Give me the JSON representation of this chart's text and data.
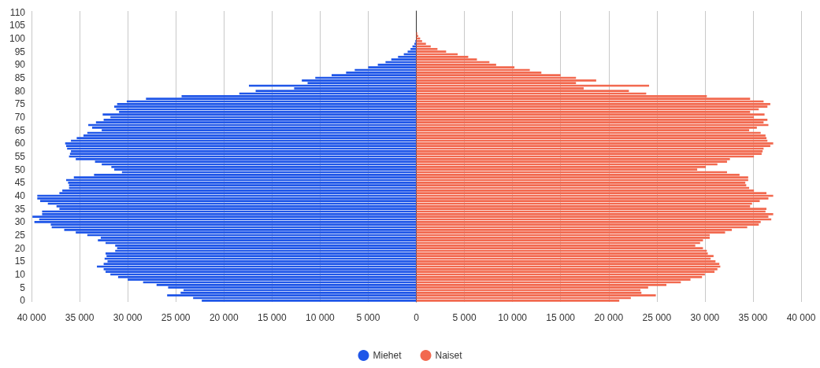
{
  "chart_data": {
    "type": "bar",
    "orientation": "horizontal",
    "categories": [
      "110",
      null,
      null,
      null,
      null,
      "105",
      null,
      null,
      null,
      null,
      "100",
      null,
      null,
      null,
      null,
      "95",
      null,
      null,
      null,
      null,
      "90",
      null,
      null,
      null,
      null,
      "85",
      null,
      null,
      null,
      null,
      "80",
      null,
      null,
      null,
      null,
      "75",
      null,
      null,
      null,
      null,
      "70",
      null,
      null,
      null,
      null,
      "65",
      null,
      null,
      null,
      null,
      "60",
      null,
      null,
      null,
      null,
      "55",
      null,
      null,
      null,
      null,
      "50",
      null,
      null,
      null,
      null,
      "45",
      null,
      null,
      null,
      null,
      "40",
      null,
      null,
      null,
      null,
      "35",
      null,
      null,
      null,
      null,
      "30",
      null,
      null,
      null,
      null,
      "25",
      null,
      null,
      null,
      null,
      "20",
      null,
      null,
      null,
      null,
      "15",
      null,
      null,
      null,
      null,
      "10",
      null,
      null,
      null,
      null,
      "5",
      null,
      null,
      null,
      null,
      "0"
    ],
    "series": [
      {
        "name": "Miehet",
        "color": "#1f56e8",
        "values": [
          0,
          0,
          0,
          0,
          0,
          0,
          0,
          0,
          0,
          0,
          0,
          -100,
          -200,
          -400,
          -600,
          -900,
          -1300,
          -1900,
          -2600,
          -3200,
          -4000,
          -5000,
          -6400,
          -7300,
          -8800,
          -10500,
          -11900,
          -11300,
          -17400,
          -12700,
          -16700,
          -18400,
          -24400,
          -28100,
          -30100,
          -31100,
          -31400,
          -31200,
          -30900,
          -32600,
          -31800,
          -32500,
          -33300,
          -34100,
          -33700,
          -32700,
          -34200,
          -34600,
          -35300,
          -35900,
          -36500,
          -36400,
          -36300,
          -35900,
          -36000,
          -36100,
          -35400,
          -33400,
          -32700,
          -31700,
          -31400,
          -30600,
          -33500,
          -35600,
          -36400,
          -36200,
          -36100,
          -36100,
          -36800,
          -37100,
          -39400,
          -39400,
          -39100,
          -38300,
          -37400,
          -37100,
          -38900,
          -38900,
          -39900,
          -39200,
          -39700,
          -38000,
          -37900,
          -36600,
          -35400,
          -34200,
          -32800,
          -33100,
          -32300,
          -31300,
          -31100,
          -31300,
          -32300,
          -32200,
          -32400,
          -32100,
          -32500,
          -33200,
          -32500,
          -32300,
          -31800,
          -31000,
          -30000,
          -28400,
          -27000,
          -25800,
          -24200,
          -24500,
          -25900,
          -23200,
          -22300
        ]
      },
      {
        "name": "Naiset",
        "color": "#f2694f",
        "values": [
          0,
          0,
          0,
          0,
          0,
          0,
          0,
          0,
          100,
          200,
          400,
          600,
          1000,
          1500,
          2200,
          3100,
          4300,
          5400,
          6300,
          7600,
          8300,
          10200,
          11800,
          13000,
          15000,
          16600,
          18700,
          16600,
          24200,
          17400,
          22100,
          23900,
          30200,
          34700,
          36100,
          36800,
          36500,
          35600,
          34700,
          36200,
          35100,
          36500,
          36100,
          36600,
          35400,
          34600,
          35800,
          36300,
          36400,
          36500,
          37100,
          36800,
          36100,
          36000,
          35900,
          35100,
          32600,
          32300,
          31300,
          30100,
          29200,
          32300,
          33600,
          34500,
          34500,
          34200,
          34300,
          34600,
          35100,
          36400,
          37100,
          36600,
          35700,
          34900,
          34700,
          36400,
          36300,
          37100,
          36600,
          36900,
          35800,
          35600,
          34400,
          32800,
          32100,
          30500,
          30500,
          29800,
          29500,
          29000,
          29800,
          30200,
          30300,
          30900,
          30600,
          31100,
          31500,
          31600,
          31300,
          31000,
          30000,
          29700,
          28500,
          27500,
          26000,
          24100,
          23300,
          23400,
          24900,
          22300,
          21100
        ]
      }
    ],
    "xlim": [
      -40000,
      40000
    ],
    "xticks": [
      {
        "value": -40000,
        "label": "40 000"
      },
      {
        "value": -35000,
        "label": "35 000"
      },
      {
        "value": -30000,
        "label": "30 000"
      },
      {
        "value": -25000,
        "label": "25 000"
      },
      {
        "value": -20000,
        "label": "20 000"
      },
      {
        "value": -15000,
        "label": "15 000"
      },
      {
        "value": -10000,
        "label": "10 000"
      },
      {
        "value": -5000,
        "label": "5 000"
      },
      {
        "value": 0,
        "label": "0"
      },
      {
        "value": 5000,
        "label": "5 000"
      },
      {
        "value": 10000,
        "label": "10 000"
      },
      {
        "value": 15000,
        "label": "15 000"
      },
      {
        "value": 20000,
        "label": "20 000"
      },
      {
        "value": 25000,
        "label": "25 000"
      },
      {
        "value": 30000,
        "label": "30 000"
      },
      {
        "value": 35000,
        "label": "35 000"
      },
      {
        "value": 40000,
        "label": "40 000"
      }
    ],
    "stacked": true,
    "grid": "x",
    "legend": "bottom"
  }
}
